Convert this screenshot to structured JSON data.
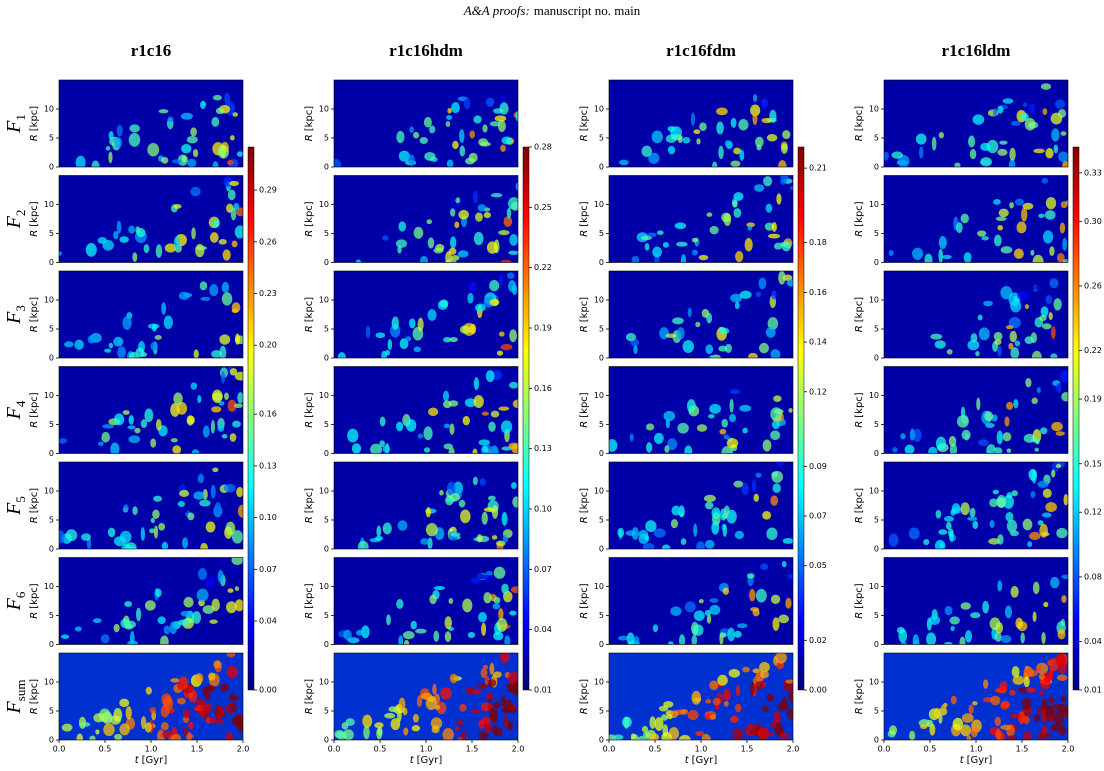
{
  "header": {
    "journal": "A&A proofs:",
    "text": "manuscript no. main"
  },
  "row_labels": [
    {
      "symbol": "F",
      "sub": "1"
    },
    {
      "symbol": "F",
      "sub": "2"
    },
    {
      "symbol": "F",
      "sub": "3"
    },
    {
      "symbol": "F",
      "sub": "4"
    },
    {
      "symbol": "F",
      "sub": "5"
    },
    {
      "symbol": "F",
      "sub": "6"
    },
    {
      "symbol": "F",
      "sub": "sum"
    }
  ],
  "chart_data": [
    {
      "type": "heatmap",
      "title": "r1c16",
      "ylabel": {
        "symbol": "R",
        "unit": "[kpc]"
      },
      "xlabel": {
        "symbol": "t",
        "unit": "[Gyr]"
      },
      "xlim": [
        0,
        2
      ],
      "xticks": [
        {
          "value": 0,
          "label": "0.0"
        },
        0.5,
        {
          "value": 1,
          "label": "1.0"
        },
        1.5,
        {
          "value": 2,
          "label": "2.0"
        }
      ],
      "ylim": [
        0,
        15
      ],
      "yticks": [
        0,
        5,
        10
      ],
      "colorbar": {
        "colormap": "jet",
        "lim": [
          0,
          0.315
        ],
        "ticks": [
          {
            "value": 0,
            "label": "0.00"
          },
          0.04,
          0.07,
          {
            "value": 0.1,
            "label": "0.10"
          },
          0.13,
          0.16,
          {
            "value": 0.2,
            "label": "0.20"
          },
          0.23,
          0.26,
          0.29
        ]
      }
    },
    {
      "type": "heatmap",
      "title": "r1c16hdm",
      "ylabel": {
        "symbol": "R",
        "unit": "[kpc]"
      },
      "xlabel": {
        "symbol": "t",
        "unit": "[Gyr]"
      },
      "xlim": [
        0,
        2
      ],
      "xticks": [
        {
          "value": 0,
          "label": "0.0"
        },
        0.5,
        {
          "value": 1,
          "label": "1.0"
        },
        1.5,
        {
          "value": 2,
          "label": "2.0"
        }
      ],
      "ylim": [
        0,
        15
      ],
      "yticks": [
        0,
        5,
        10
      ],
      "colorbar": {
        "colormap": "jet",
        "lim": [
          0.01,
          0.28
        ],
        "ticks": [
          0.01,
          0.04,
          0.07,
          {
            "value": 0.1,
            "label": "0.10"
          },
          0.13,
          0.16,
          0.19,
          0.22,
          0.25,
          0.28
        ]
      }
    },
    {
      "type": "heatmap",
      "title": "r1c16fdm",
      "ylabel": {
        "symbol": "R",
        "unit": "[kpc]"
      },
      "xlabel": {
        "symbol": "t",
        "unit": "[Gyr]"
      },
      "xlim": [
        0,
        2
      ],
      "xticks": [
        {
          "value": 0,
          "label": "0.0"
        },
        0.5,
        {
          "value": 1,
          "label": "1.0"
        },
        1.5,
        {
          "value": 2,
          "label": "2.0"
        }
      ],
      "ylim": [
        0,
        15
      ],
      "yticks": [
        0,
        5,
        10
      ],
      "colorbar": {
        "colormap": "jet",
        "lim": [
          0,
          0.2185
        ],
        "ticks": [
          {
            "value": 0,
            "label": "0.00"
          },
          0.02,
          0.05,
          0.07,
          0.09,
          0.12,
          0.14,
          0.16,
          0.18,
          0.21
        ]
      }
    },
    {
      "type": "heatmap",
      "title": "r1c16ldm",
      "ylabel": {
        "symbol": "R",
        "unit": "[kpc]"
      },
      "xlabel": {
        "symbol": "t",
        "unit": "[Gyr]"
      },
      "xlim": [
        0,
        2
      ],
      "xticks": [
        {
          "value": 0,
          "label": "0.0"
        },
        0.5,
        {
          "value": 1,
          "label": "1.0"
        },
        1.5,
        {
          "value": 2,
          "label": "2.0"
        }
      ],
      "ylim": [
        0,
        15
      ],
      "yticks": [
        0,
        5,
        10
      ],
      "colorbar": {
        "colormap": "jet",
        "lim": [
          0.01,
          0.346
        ],
        "ticks": [
          0.01,
          0.04,
          0.08,
          0.12,
          0.15,
          0.19,
          0.22,
          0.26,
          {
            "value": 0.3,
            "label": "0.30"
          },
          0.33
        ]
      }
    }
  ]
}
